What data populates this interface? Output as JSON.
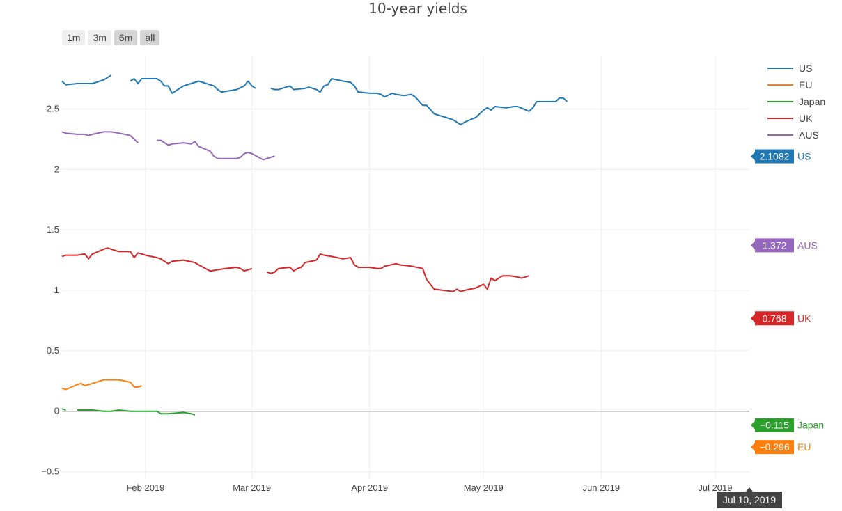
{
  "chart_data": {
    "type": "line",
    "title": "10-year yields",
    "xlabel": "",
    "ylabel": "",
    "x_range": [
      "2019-01-10",
      "2019-07-10"
    ],
    "ylim": [
      -0.56,
      2.94
    ],
    "x_ticks": [
      {
        "date": "2019-02-01",
        "label": "Feb 2019"
      },
      {
        "date": "2019-03-01",
        "label": "Mar 2019"
      },
      {
        "date": "2019-04-01",
        "label": "Apr 2019"
      },
      {
        "date": "2019-05-01",
        "label": "May 2019"
      },
      {
        "date": "2019-06-01",
        "label": "Jun 2019"
      },
      {
        "date": "2019-07-01",
        "label": "Jul 2019"
      }
    ],
    "y_ticks": [
      {
        "value": 2.5,
        "label": "2.5"
      },
      {
        "value": 2,
        "label": "2"
      },
      {
        "value": 1.5,
        "label": "1.5"
      },
      {
        "value": 1,
        "label": "1"
      },
      {
        "value": 0.5,
        "label": "0.5"
      },
      {
        "value": 0,
        "label": "0"
      },
      {
        "value": -0.5,
        "label": "−0.5"
      }
    ],
    "grid": true,
    "zero_line": true,
    "legend_position": "top-right",
    "range_selector": {
      "buttons": [
        "1m",
        "3m",
        "6m",
        "all"
      ],
      "active": [
        "6m",
        "all"
      ]
    },
    "hover_date": "Jul 10, 2019",
    "series": [
      {
        "name": "US",
        "color": "#1f77b4",
        "last_label": "2.1082",
        "segments": [
          [
            [
              "2019-01-10",
              2.73
            ],
            [
              "2019-01-11",
              2.7
            ],
            [
              "2019-01-14",
              2.71
            ],
            [
              "2019-01-16",
              2.71
            ],
            [
              "2019-01-18",
              2.71
            ],
            [
              "2019-01-21",
              2.74
            ],
            [
              "2019-01-23",
              2.78
            ]
          ],
          [
            [
              "2019-01-28",
              2.73
            ],
            [
              "2019-01-29",
              2.75
            ],
            [
              "2019-01-30",
              2.71
            ],
            [
              "2019-01-31",
              2.75
            ],
            [
              "2019-02-04",
              2.75
            ],
            [
              "2019-02-05",
              2.73
            ],
            [
              "2019-02-06",
              2.69
            ],
            [
              "2019-02-07",
              2.69
            ],
            [
              "2019-02-08",
              2.63
            ],
            [
              "2019-02-11",
              2.69
            ],
            [
              "2019-02-13",
              2.71
            ],
            [
              "2019-02-15",
              2.73
            ],
            [
              "2019-02-18",
              2.7
            ],
            [
              "2019-02-19",
              2.69
            ],
            [
              "2019-02-20",
              2.66
            ],
            [
              "2019-02-21",
              2.64
            ],
            [
              "2019-02-25",
              2.66
            ],
            [
              "2019-02-27",
              2.69
            ],
            [
              "2019-02-28",
              2.73
            ],
            [
              "2019-03-01",
              2.69
            ],
            [
              "2019-03-02",
              2.67
            ]
          ],
          [
            [
              "2019-03-06",
              2.67
            ],
            [
              "2019-03-07",
              2.66
            ],
            [
              "2019-03-08",
              2.66
            ],
            [
              "2019-03-11",
              2.69
            ],
            [
              "2019-03-12",
              2.66
            ],
            [
              "2019-03-15",
              2.67
            ],
            [
              "2019-03-16",
              2.68
            ],
            [
              "2019-03-18",
              2.66
            ],
            [
              "2019-03-19",
              2.64
            ],
            [
              "2019-03-20",
              2.69
            ],
            [
              "2019-03-21",
              2.7
            ],
            [
              "2019-03-22",
              2.75
            ],
            [
              "2019-03-25",
              2.73
            ],
            [
              "2019-03-27",
              2.72
            ],
            [
              "2019-03-28",
              2.69
            ],
            [
              "2019-03-29",
              2.64
            ],
            [
              "2019-04-01",
              2.63
            ],
            [
              "2019-04-03",
              2.63
            ],
            [
              "2019-04-04",
              2.62
            ],
            [
              "2019-04-05",
              2.6
            ],
            [
              "2019-04-07",
              2.63
            ],
            [
              "2019-04-08",
              2.62
            ],
            [
              "2019-04-10",
              2.61
            ],
            [
              "2019-04-12",
              2.62
            ],
            [
              "2019-04-13",
              2.6
            ],
            [
              "2019-04-15",
              2.53
            ],
            [
              "2019-04-16",
              2.53
            ],
            [
              "2019-04-18",
              2.46
            ],
            [
              "2019-04-23",
              2.41
            ],
            [
              "2019-04-25",
              2.37
            ],
            [
              "2019-04-26",
              2.39
            ],
            [
              "2019-04-29",
              2.43
            ],
            [
              "2019-05-01",
              2.49
            ],
            [
              "2019-05-02",
              2.51
            ],
            [
              "2019-05-03",
              2.49
            ],
            [
              "2019-05-04",
              2.52
            ],
            [
              "2019-05-07",
              2.51
            ],
            [
              "2019-05-09",
              2.52
            ],
            [
              "2019-05-10",
              2.52
            ],
            [
              "2019-05-13",
              2.48
            ],
            [
              "2019-05-14",
              2.51
            ],
            [
              "2019-05-15",
              2.56
            ],
            [
              "2019-05-20",
              2.56
            ],
            [
              "2019-05-21",
              2.59
            ],
            [
              "2019-05-22",
              2.59
            ],
            [
              "2019-05-23",
              2.56
            ]
          ]
        ]
      },
      {
        "name": "EU",
        "color": "#ff7f0e",
        "last_label": "−0.296",
        "segments": [
          [
            [
              "2019-01-10",
              0.19
            ],
            [
              "2019-01-11",
              0.18
            ],
            [
              "2019-01-14",
              0.22
            ],
            [
              "2019-01-15",
              0.23
            ],
            [
              "2019-01-16",
              0.21
            ],
            [
              "2019-01-18",
              0.23
            ],
            [
              "2019-01-21",
              0.26
            ],
            [
              "2019-01-23",
              0.26
            ],
            [
              "2019-01-25",
              0.26
            ],
            [
              "2019-01-28",
              0.24
            ],
            [
              "2019-01-29",
              0.2
            ],
            [
              "2019-01-30",
              0.2
            ],
            [
              "2019-01-31",
              0.21
            ]
          ]
        ]
      },
      {
        "name": "Japan",
        "color": "#2ca02c",
        "last_label": "−0.115",
        "segments": [
          [
            [
              "2019-01-10",
              0.02
            ],
            [
              "2019-01-11",
              0.01
            ]
          ],
          [
            [
              "2019-01-14",
              0.01
            ],
            [
              "2019-01-16",
              0.01
            ],
            [
              "2019-01-18",
              0.01
            ],
            [
              "2019-01-21",
              0.0
            ],
            [
              "2019-01-23",
              0.0
            ],
            [
              "2019-01-25",
              0.01
            ],
            [
              "2019-01-28",
              0.0
            ],
            [
              "2019-01-30",
              0.0
            ],
            [
              "2019-02-01",
              0.0
            ],
            [
              "2019-02-04",
              0.0
            ],
            [
              "2019-02-05",
              -0.02
            ],
            [
              "2019-02-07",
              -0.02
            ],
            [
              "2019-02-11",
              -0.01
            ],
            [
              "2019-02-13",
              -0.02
            ],
            [
              "2019-02-14",
              -0.03
            ]
          ]
        ]
      },
      {
        "name": "UK",
        "color": "#d62728",
        "last_label": "0.768",
        "segments": [
          [
            [
              "2019-01-10",
              1.28
            ],
            [
              "2019-01-11",
              1.29
            ],
            [
              "2019-01-14",
              1.29
            ],
            [
              "2019-01-16",
              1.3
            ],
            [
              "2019-01-17",
              1.26
            ],
            [
              "2019-01-18",
              1.3
            ],
            [
              "2019-01-21",
              1.34
            ],
            [
              "2019-01-22",
              1.35
            ],
            [
              "2019-01-23",
              1.34
            ],
            [
              "2019-01-25",
              1.32
            ],
            [
              "2019-01-28",
              1.32
            ],
            [
              "2019-01-29",
              1.27
            ],
            [
              "2019-01-30",
              1.31
            ],
            [
              "2019-02-01",
              1.29
            ],
            [
              "2019-02-04",
              1.27
            ],
            [
              "2019-02-05",
              1.26
            ],
            [
              "2019-02-07",
              1.22
            ],
            [
              "2019-02-08",
              1.24
            ],
            [
              "2019-02-11",
              1.25
            ],
            [
              "2019-02-14",
              1.23
            ],
            [
              "2019-02-15",
              1.21
            ],
            [
              "2019-02-18",
              1.16
            ],
            [
              "2019-02-20",
              1.17
            ],
            [
              "2019-02-22",
              1.18
            ],
            [
              "2019-02-25",
              1.19
            ],
            [
              "2019-02-26",
              1.18
            ],
            [
              "2019-02-27",
              1.16
            ],
            [
              "2019-02-28",
              1.17
            ],
            [
              "2019-03-01",
              1.18
            ]
          ],
          [
            [
              "2019-03-05",
              1.15
            ],
            [
              "2019-03-06",
              1.14
            ],
            [
              "2019-03-07",
              1.15
            ],
            [
              "2019-03-08",
              1.18
            ],
            [
              "2019-03-11",
              1.19
            ],
            [
              "2019-03-12",
              1.16
            ],
            [
              "2019-03-13",
              1.18
            ],
            [
              "2019-03-14",
              1.19
            ],
            [
              "2019-03-15",
              1.23
            ],
            [
              "2019-03-18",
              1.25
            ],
            [
              "2019-03-19",
              1.3
            ],
            [
              "2019-03-20",
              1.29
            ],
            [
              "2019-03-22",
              1.28
            ],
            [
              "2019-03-25",
              1.26
            ],
            [
              "2019-03-27",
              1.27
            ],
            [
              "2019-03-28",
              1.21
            ],
            [
              "2019-03-29",
              1.19
            ],
            [
              "2019-04-01",
              1.19
            ],
            [
              "2019-04-03",
              1.18
            ],
            [
              "2019-04-04",
              1.18
            ],
            [
              "2019-04-05",
              1.2
            ],
            [
              "2019-04-08",
              1.22
            ],
            [
              "2019-04-09",
              1.21
            ],
            [
              "2019-04-12",
              1.2
            ],
            [
              "2019-04-15",
              1.18
            ],
            [
              "2019-04-16",
              1.09
            ],
            [
              "2019-04-18",
              1.01
            ],
            [
              "2019-04-23",
              0.99
            ],
            [
              "2019-04-24",
              1.01
            ],
            [
              "2019-04-25",
              0.99
            ],
            [
              "2019-04-26",
              1.0
            ],
            [
              "2019-04-29",
              1.02
            ],
            [
              "2019-05-01",
              1.05
            ],
            [
              "2019-05-02",
              1.01
            ],
            [
              "2019-05-03",
              1.1
            ],
            [
              "2019-05-04",
              1.08
            ],
            [
              "2019-05-06",
              1.12
            ],
            [
              "2019-05-08",
              1.12
            ],
            [
              "2019-05-10",
              1.11
            ],
            [
              "2019-05-11",
              1.1
            ],
            [
              "2019-05-13",
              1.12
            ]
          ]
        ]
      },
      {
        "name": "AUS",
        "color": "#9467bd",
        "last_label": "1.372",
        "segments": [
          [
            [
              "2019-01-10",
              2.31
            ],
            [
              "2019-01-11",
              2.3
            ],
            [
              "2019-01-14",
              2.29
            ],
            [
              "2019-01-16",
              2.29
            ],
            [
              "2019-01-17",
              2.28
            ],
            [
              "2019-01-18",
              2.29
            ],
            [
              "2019-01-21",
              2.31
            ],
            [
              "2019-01-23",
              2.31
            ],
            [
              "2019-01-25",
              2.3
            ],
            [
              "2019-01-28",
              2.28
            ],
            [
              "2019-01-30",
              2.22
            ]
          ],
          [
            [
              "2019-02-04",
              2.24
            ],
            [
              "2019-02-05",
              2.24
            ],
            [
              "2019-02-07",
              2.2
            ],
            [
              "2019-02-08",
              2.21
            ],
            [
              "2019-02-11",
              2.22
            ],
            [
              "2019-02-13",
              2.21
            ],
            [
              "2019-02-14",
              2.23
            ],
            [
              "2019-02-15",
              2.19
            ],
            [
              "2019-02-18",
              2.15
            ],
            [
              "2019-02-19",
              2.11
            ],
            [
              "2019-02-20",
              2.09
            ],
            [
              "2019-02-22",
              2.09
            ],
            [
              "2019-02-25",
              2.09
            ],
            [
              "2019-02-26",
              2.1
            ],
            [
              "2019-02-27",
              2.13
            ],
            [
              "2019-02-28",
              2.14
            ],
            [
              "2019-03-01",
              2.13
            ],
            [
              "2019-03-04",
              2.08
            ],
            [
              "2019-03-05",
              2.09
            ],
            [
              "2019-03-07",
              2.11
            ]
          ]
        ]
      }
    ]
  },
  "colors": {
    "grid": "#eeeeee",
    "zero_line": "#444444",
    "hover_bg": "#444444",
    "range_button_bg": "#eeeeee",
    "range_button_active_bg": "#d4d4d4"
  }
}
